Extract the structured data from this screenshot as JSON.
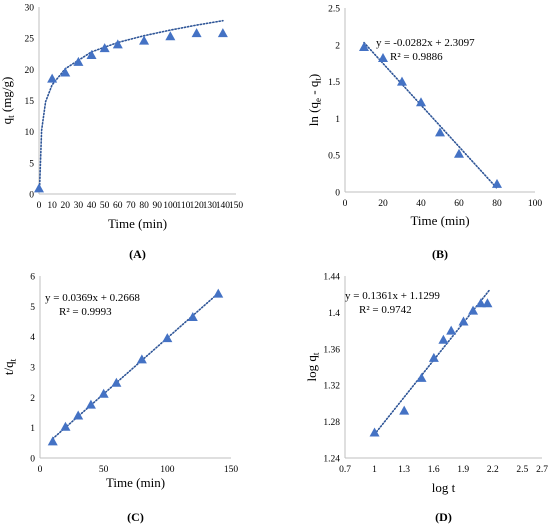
{
  "colors": {
    "marker": "#4472C4",
    "trend": "#2E5597",
    "axis": "#BFBFBF"
  },
  "chart_data": [
    {
      "id": "A",
      "type": "scatter",
      "caption": "(A)",
      "xlabel": "Time (min)",
      "ylabel_main": "q",
      "ylabel_sub": "t",
      "ylabel_unit": " (mg/g)",
      "xlim": [
        0,
        150
      ],
      "ylim": [
        0,
        30
      ],
      "xticks": [
        0,
        10,
        20,
        30,
        40,
        50,
        60,
        70,
        80,
        90,
        100,
        110,
        120,
        130,
        140,
        150
      ],
      "yticks": [
        0,
        5,
        10,
        15,
        20,
        25,
        30
      ],
      "series": [
        {
          "x": [
            0,
            10,
            20,
            30,
            40,
            50,
            60,
            80,
            100,
            120,
            140
          ],
          "y": [
            0.9,
            18.5,
            19.5,
            21.2,
            22.3,
            23.4,
            24.0,
            24.6,
            25.3,
            25.8,
            25.8
          ]
        }
      ],
      "trendline": {
        "kind": "log",
        "points": [
          [
            0.5,
            1.5
          ],
          [
            2,
            10.2
          ],
          [
            5,
            14.8
          ],
          [
            10,
            17.5
          ],
          [
            20,
            20.1
          ],
          [
            40,
            22.8
          ],
          [
            60,
            24.3
          ],
          [
            80,
            25.4
          ],
          [
            100,
            26.3
          ],
          [
            120,
            27.1
          ],
          [
            140,
            27.8
          ]
        ]
      }
    },
    {
      "id": "B",
      "type": "scatter",
      "caption": "(B)",
      "xlabel": "Time (min)",
      "ylabel_main": "ln (q",
      "ylabel_sub": "e",
      "ylabel_mid": " - q",
      "ylabel_sub2": "t",
      "ylabel_end": ")",
      "xlim": [
        0,
        100
      ],
      "ylim": [
        0,
        2.5
      ],
      "xticks": [
        0,
        20,
        40,
        60,
        80,
        100
      ],
      "yticks": [
        0,
        0.5,
        1,
        1.5,
        2,
        2.5
      ],
      "series": [
        {
          "x": [
            10,
            20,
            30,
            40,
            50,
            60,
            80
          ],
          "y": [
            1.97,
            1.82,
            1.5,
            1.22,
            0.81,
            0.52,
            0.11
          ]
        }
      ],
      "trendline": {
        "kind": "linear",
        "points": [
          [
            10,
            2.03
          ],
          [
            80,
            0.05
          ]
        ]
      },
      "equation": "y = -0.0282x + 2.3097",
      "r2": "R² = 0.9886"
    },
    {
      "id": "C",
      "type": "scatter",
      "caption": "(C)",
      "xlabel": "Time (min)",
      "ylabel_main": "t/q",
      "ylabel_sub": "t",
      "xlim": [
        0,
        150
      ],
      "ylim": [
        0,
        6
      ],
      "xticks": [
        0,
        50,
        100,
        150
      ],
      "yticks": [
        0,
        1,
        2,
        3,
        4,
        5,
        6
      ],
      "series": [
        {
          "x": [
            10,
            20,
            30,
            40,
            50,
            60,
            80,
            100,
            120,
            140
          ],
          "y": [
            0.55,
            1.03,
            1.4,
            1.76,
            2.12,
            2.48,
            3.25,
            3.95,
            4.65,
            5.42
          ]
        }
      ],
      "trendline": {
        "kind": "linear",
        "points": [
          [
            10,
            0.636
          ],
          [
            140,
            5.433
          ]
        ]
      },
      "equation": "y = 0.0369x + 0.2668",
      "r2": "R² = 0.9993"
    },
    {
      "id": "D",
      "type": "scatter",
      "caption": "(D)",
      "xlabel": "log t",
      "ylabel_main": "log q",
      "ylabel_sub": "t",
      "xlim": [
        0.7,
        2.7
      ],
      "ylim": [
        1.24,
        1.44
      ],
      "xticks": [
        0.7,
        1,
        1.3,
        1.6,
        1.9,
        2.2,
        2.5,
        2.7
      ],
      "ytick_labels": [
        "1.24",
        "1.28",
        "1.32",
        "1.36",
        "1.4",
        "1.44"
      ],
      "yticks": [
        1.24,
        1.28,
        1.32,
        1.36,
        1.4,
        1.44
      ],
      "series": [
        {
          "x": [
            1.0,
            1.301,
            1.477,
            1.602,
            1.699,
            1.778,
            1.903,
            2.0,
            2.079,
            2.146
          ],
          "y": [
            1.268,
            1.292,
            1.328,
            1.35,
            1.37,
            1.38,
            1.39,
            1.402,
            1.41,
            1.41
          ]
        }
      ],
      "trendline": {
        "kind": "linear",
        "points": [
          [
            1.0,
            1.266
          ],
          [
            2.17,
            1.425
          ]
        ]
      },
      "equation": "y = 0.1361x + 1.1299",
      "r2": "R² = 0.9742"
    }
  ]
}
